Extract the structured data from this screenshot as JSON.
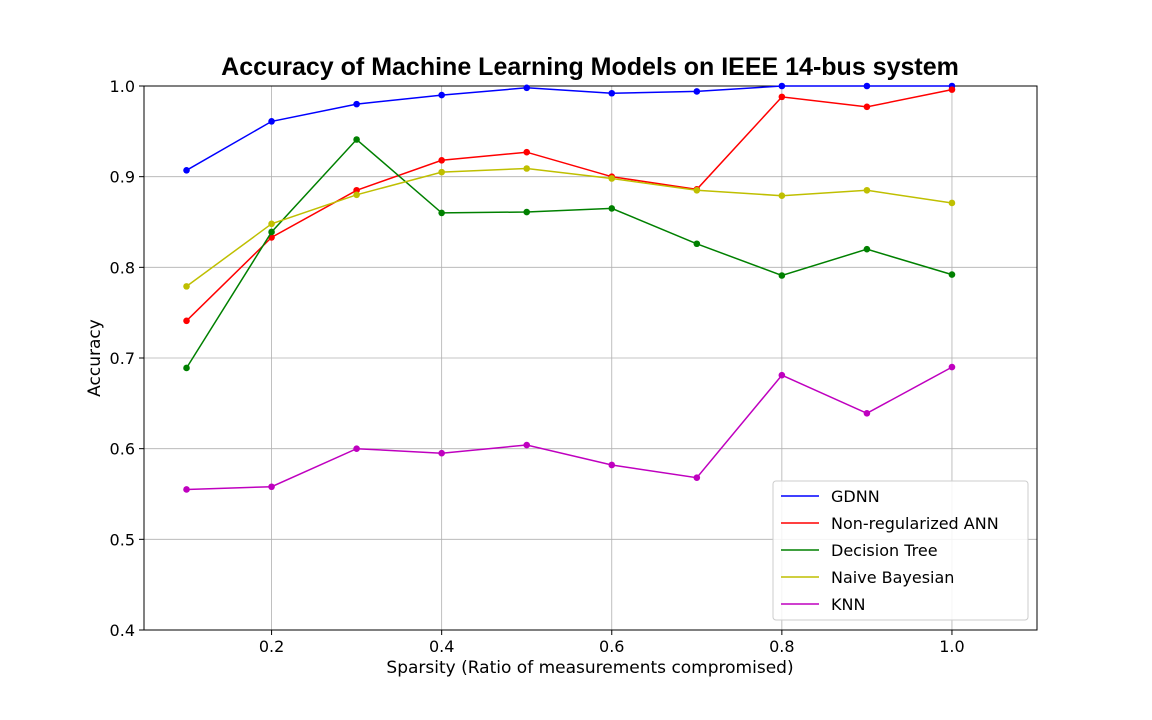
{
  "chart_data": {
    "type": "line",
    "title": "Accuracy of Machine Learning Models on IEEE 14-bus system",
    "xlabel": "Sparsity (Ratio of measurements compromised)",
    "ylabel": "Accuracy",
    "xlim": [
      0.05,
      1.1
    ],
    "ylim": [
      0.4,
      1.0
    ],
    "xticks": [
      "0.2",
      "0.4",
      "0.6",
      "0.8",
      "1.0"
    ],
    "xtick_values": [
      0.2,
      0.4,
      0.6,
      0.8,
      1.0
    ],
    "yticks": [
      "0.4",
      "0.5",
      "0.6",
      "0.7",
      "0.8",
      "0.9",
      "1.0"
    ],
    "ytick_values": [
      0.4,
      0.5,
      0.6,
      0.7,
      0.8,
      0.9,
      1.0
    ],
    "grid": true,
    "legend_position": "lower-right",
    "x": [
      0.1,
      0.2,
      0.3,
      0.4,
      0.5,
      0.6,
      0.7,
      0.8,
      0.9,
      1.0
    ],
    "series": [
      {
        "name": "GDNN",
        "color": "#0000ff",
        "values": [
          0.907,
          0.961,
          0.98,
          0.99,
          0.998,
          0.992,
          0.994,
          1.0,
          1.0,
          1.0
        ]
      },
      {
        "name": "Non-regularized ANN",
        "color": "#ff0000",
        "values": [
          0.741,
          0.833,
          0.885,
          0.918,
          0.927,
          0.9,
          0.886,
          0.988,
          0.977,
          0.996
        ]
      },
      {
        "name": "Decision Tree",
        "color": "#008000",
        "values": [
          0.689,
          0.839,
          0.941,
          0.86,
          0.861,
          0.865,
          0.826,
          0.791,
          0.82,
          0.792
        ]
      },
      {
        "name": "Naive Bayesian",
        "color": "#bfbf00",
        "values": [
          0.779,
          0.848,
          0.88,
          0.905,
          0.909,
          0.898,
          0.885,
          0.879,
          0.885,
          0.871
        ]
      },
      {
        "name": "KNN",
        "color": "#bf00bf",
        "values": [
          0.555,
          0.558,
          0.6,
          0.595,
          0.604,
          0.582,
          0.568,
          0.681,
          0.639,
          0.69
        ]
      }
    ]
  }
}
